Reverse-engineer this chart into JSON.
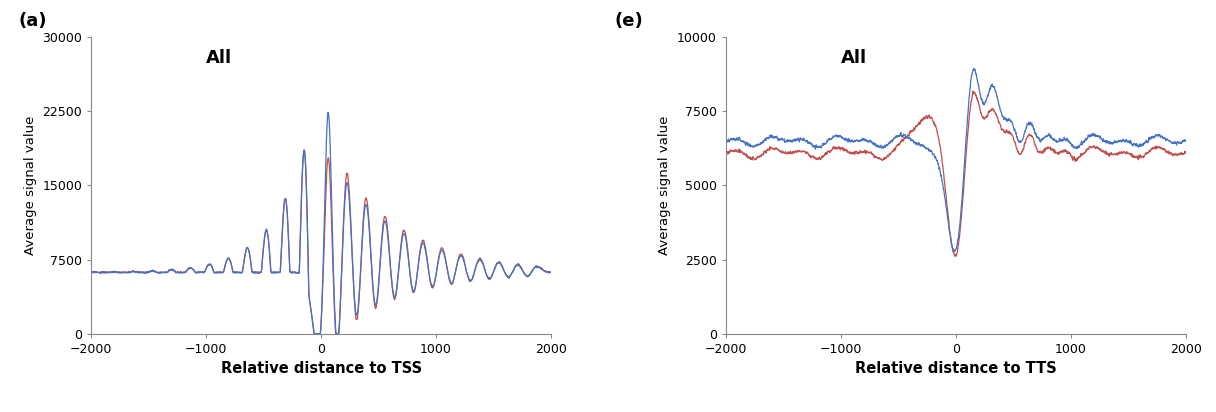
{
  "color_blue": "#4472C4",
  "color_red": "#C0504D",
  "background": "#FFFFFF",
  "panel_a_label": "(a)",
  "panel_e_label": "(e)",
  "panel_a_title": "All",
  "panel_e_title": "All",
  "panel_a_xlabel": "Relative distance to TSS",
  "panel_e_xlabel": "Relative distance to TTS",
  "ylabel": "Average signal value",
  "panel_a_ylim": [
    0,
    30000
  ],
  "panel_e_ylim": [
    0,
    10000
  ],
  "panel_a_yticks": [
    0,
    7500,
    15000,
    22500,
    30000
  ],
  "panel_e_yticks": [
    0,
    2500,
    5000,
    7500,
    10000
  ],
  "xlim": [
    -2000,
    2000
  ],
  "xticks": [
    -2000,
    -1000,
    0,
    1000,
    2000
  ],
  "tss_base": 6200,
  "tts_blue_base": 6500,
  "tts_red_base": 6100
}
